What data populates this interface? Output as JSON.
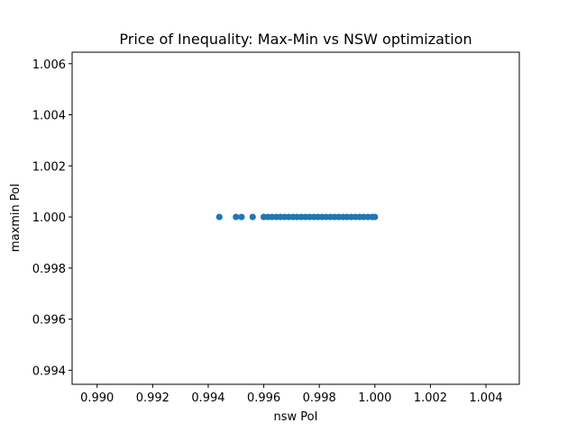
{
  "chart_data": {
    "type": "scatter",
    "title": "Price of Inequality: Max-Min vs NSW optimization",
    "xlabel": "nsw PoI",
    "ylabel": "maxmin PoI",
    "xlim": [
      0.9891,
      1.0052
    ],
    "ylim": [
      0.99345,
      1.00645
    ],
    "xticks": [
      0.99,
      0.992,
      0.994,
      0.996,
      0.998,
      1.0,
      1.002,
      1.004
    ],
    "xtick_labels": [
      "0.990",
      "0.992",
      "0.994",
      "0.996",
      "0.998",
      "1.000",
      "1.002",
      "1.004"
    ],
    "yticks": [
      0.994,
      0.996,
      0.998,
      1.0,
      1.002,
      1.004,
      1.006
    ],
    "ytick_labels": [
      "0.994",
      "0.996",
      "0.998",
      "1.000",
      "1.002",
      "1.004",
      "1.006"
    ],
    "grid": false,
    "point_color": "#1f77b4",
    "x": [
      0.9944,
      0.995,
      0.9952,
      0.9956,
      0.996,
      0.99615,
      0.9963,
      0.99645,
      0.9966,
      0.99675,
      0.9969,
      0.99705,
      0.9972,
      0.99735,
      0.9975,
      0.99765,
      0.9978,
      0.99795,
      0.9981,
      0.99825,
      0.9984,
      0.99855,
      0.9987,
      0.99885,
      0.999,
      0.99915,
      0.9993,
      0.99945,
      0.9996,
      0.99975,
      0.9999,
      1.0
    ],
    "y": [
      1.0,
      1.0,
      1.0,
      1.0,
      1.0,
      1.0,
      1.0,
      1.0,
      1.0,
      1.0,
      1.0,
      1.0,
      1.0,
      1.0,
      1.0,
      1.0,
      1.0,
      1.0,
      1.0,
      1.0,
      1.0,
      1.0,
      1.0,
      1.0,
      1.0,
      1.0,
      1.0,
      1.0,
      1.0,
      1.0,
      1.0,
      1.0
    ]
  }
}
